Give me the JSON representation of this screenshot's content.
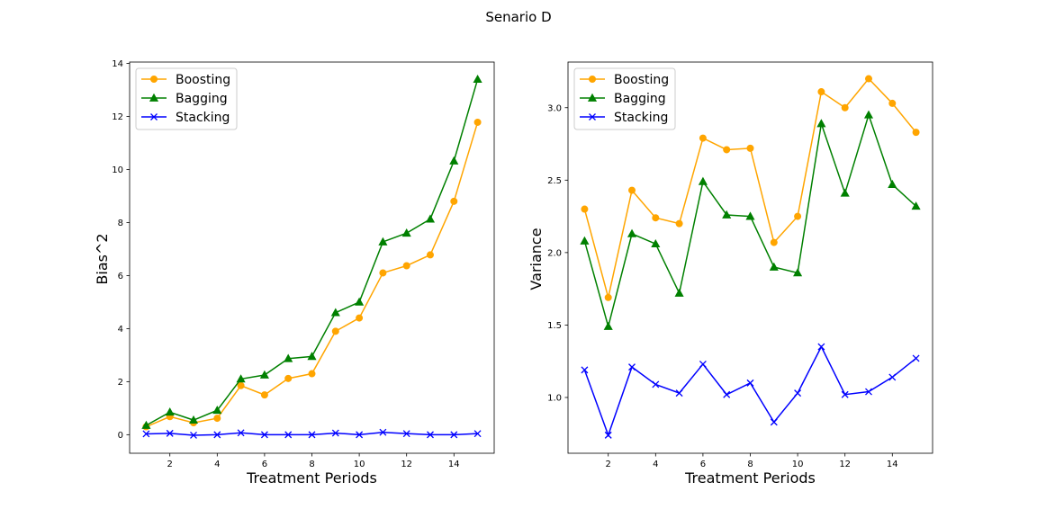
{
  "figure": {
    "title": "Senario D"
  },
  "colors": {
    "Boosting": "#ffa500",
    "Bagging": "#008000",
    "Stacking": "#0000ff"
  },
  "chart_data": [
    {
      "type": "line",
      "xlabel": "Treatment Periods",
      "ylabel": "Bias^2",
      "xlim": [
        0.3,
        15.7
      ],
      "ylim": [
        -0.7,
        14.05
      ],
      "xticks": [
        2,
        4,
        6,
        8,
        10,
        12,
        14
      ],
      "yticks": [
        0,
        2,
        4,
        6,
        8,
        10,
        12,
        14
      ],
      "ytick_decimals": 0,
      "legend": "upper-left",
      "x": [
        1,
        2,
        3,
        4,
        5,
        6,
        7,
        8,
        9,
        10,
        11,
        12,
        13,
        14,
        15
      ],
      "series": [
        {
          "name": "Boosting",
          "marker": "circle",
          "values": [
            0.3,
            0.68,
            0.45,
            0.62,
            1.85,
            1.5,
            2.12,
            2.3,
            3.9,
            4.4,
            6.1,
            6.37,
            6.78,
            8.8,
            11.78
          ]
        },
        {
          "name": "Bagging",
          "marker": "triangle",
          "values": [
            0.35,
            0.85,
            0.55,
            0.92,
            2.1,
            2.25,
            2.87,
            2.95,
            4.6,
            5.0,
            7.27,
            7.6,
            8.13,
            10.32,
            13.4
          ]
        },
        {
          "name": "Stacking",
          "marker": "x",
          "values": [
            0.03,
            0.05,
            -0.02,
            0.0,
            0.07,
            0.0,
            0.0,
            0.0,
            0.06,
            0.0,
            0.09,
            0.04,
            0.0,
            0.0,
            0.04
          ]
        }
      ]
    },
    {
      "type": "line",
      "xlabel": "Treatment Periods",
      "ylabel": "Variance",
      "xlim": [
        0.3,
        15.7
      ],
      "ylim": [
        0.615,
        3.315
      ],
      "xticks": [
        2,
        4,
        6,
        8,
        10,
        12,
        14
      ],
      "yticks": [
        1.0,
        1.5,
        2.0,
        2.5,
        3.0
      ],
      "ytick_decimals": 1,
      "legend": "upper-left",
      "x": [
        1,
        2,
        3,
        4,
        5,
        6,
        7,
        8,
        9,
        10,
        11,
        12,
        13,
        14,
        15
      ],
      "series": [
        {
          "name": "Boosting",
          "marker": "circle",
          "values": [
            2.3,
            1.69,
            2.43,
            2.24,
            2.2,
            2.79,
            2.71,
            2.72,
            2.07,
            2.25,
            3.11,
            3.0,
            3.2,
            3.03,
            2.83
          ]
        },
        {
          "name": "Bagging",
          "marker": "triangle",
          "values": [
            2.08,
            1.49,
            2.13,
            2.06,
            1.72,
            2.49,
            2.26,
            2.25,
            1.9,
            1.86,
            2.89,
            2.41,
            2.95,
            2.47,
            2.32
          ]
        },
        {
          "name": "Stacking",
          "marker": "x",
          "values": [
            1.19,
            0.74,
            1.21,
            1.09,
            1.03,
            1.23,
            1.02,
            1.1,
            0.83,
            1.03,
            1.35,
            1.02,
            1.04,
            1.14,
            1.27
          ]
        }
      ]
    }
  ]
}
